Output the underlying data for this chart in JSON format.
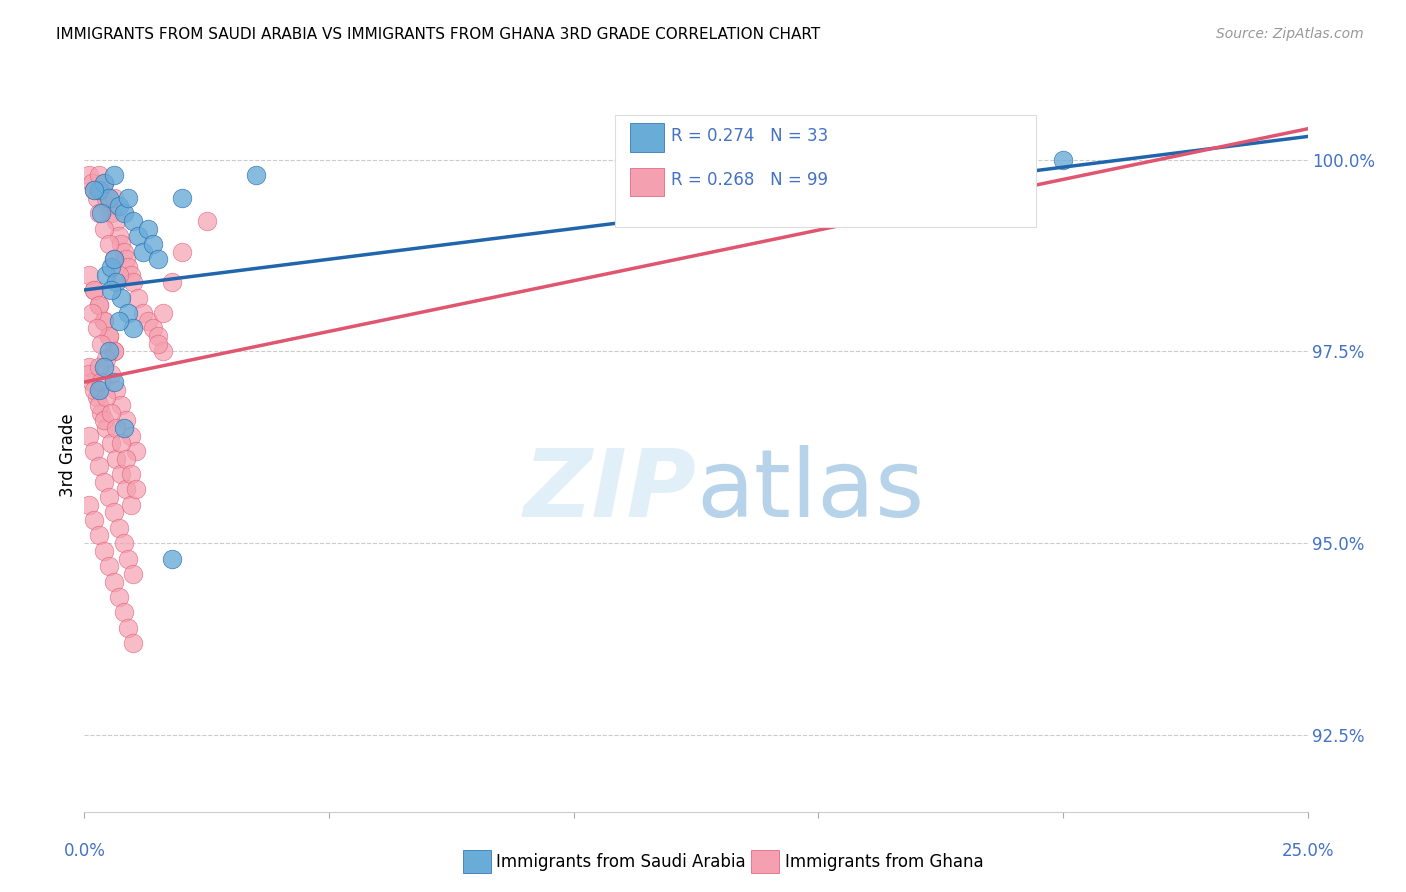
{
  "title": "IMMIGRANTS FROM SAUDI ARABIA VS IMMIGRANTS FROM GHANA 3RD GRADE CORRELATION CHART",
  "source": "Source: ZipAtlas.com",
  "ylabel": "3rd Grade",
  "ytick_labels": [
    "92.5%",
    "95.0%",
    "97.5%",
    "100.0%"
  ],
  "ytick_values": [
    92.5,
    95.0,
    97.5,
    100.0
  ],
  "xlim": [
    0.0,
    25.0
  ],
  "ylim": [
    91.5,
    100.8
  ],
  "legend_blue_label": "R = 0.274   N = 33",
  "legend_pink_label": "R = 0.268   N = 99",
  "legend_bottom_blue": "Immigrants from Saudi Arabia",
  "legend_bottom_pink": "Immigrants from Ghana",
  "blue_color": "#6aacd8",
  "pink_color": "#f4a0b0",
  "blue_line_color": "#2166ac",
  "pink_line_color": "#e05570",
  "background_color": "#ffffff",
  "blue_scatter_x": [
    0.3,
    0.4,
    0.5,
    0.6,
    0.7,
    0.8,
    0.9,
    1.0,
    1.1,
    1.2,
    1.3,
    1.4,
    1.5,
    0.2,
    0.35,
    0.45,
    0.55,
    0.65,
    0.75,
    0.9,
    1.0,
    0.5,
    0.4,
    0.3,
    2.0,
    0.6,
    0.55,
    0.7,
    3.5,
    1.8,
    0.8,
    0.6,
    20.0
  ],
  "blue_scatter_y": [
    99.6,
    99.7,
    99.5,
    99.8,
    99.4,
    99.3,
    99.5,
    99.2,
    99.0,
    98.8,
    99.1,
    98.9,
    98.7,
    99.6,
    99.3,
    98.5,
    98.6,
    98.4,
    98.2,
    98.0,
    97.8,
    97.5,
    97.3,
    97.0,
    99.5,
    98.7,
    98.3,
    97.9,
    99.8,
    94.8,
    96.5,
    97.1,
    100.0
  ],
  "pink_scatter_x": [
    0.1,
    0.15,
    0.2,
    0.25,
    0.3,
    0.35,
    0.4,
    0.45,
    0.5,
    0.55,
    0.6,
    0.65,
    0.7,
    0.75,
    0.8,
    0.85,
    0.9,
    0.95,
    1.0,
    1.1,
    1.2,
    1.3,
    1.4,
    1.5,
    1.6,
    0.2,
    0.3,
    0.4,
    0.5,
    0.6,
    0.1,
    0.15,
    0.25,
    0.35,
    0.45,
    0.55,
    0.65,
    0.75,
    0.85,
    0.95,
    0.1,
    0.2,
    0.3,
    0.4,
    0.5,
    0.6,
    0.1,
    0.2,
    0.3,
    0.4,
    0.1,
    0.2,
    0.3,
    0.4,
    0.5,
    0.6,
    0.7,
    0.8,
    0.9,
    1.0,
    0.15,
    0.25,
    0.35,
    0.45,
    0.55,
    0.65,
    0.75,
    0.85,
    0.95,
    1.05,
    0.1,
    0.2,
    0.3,
    0.4,
    0.5,
    0.6,
    0.7,
    0.8,
    0.9,
    1.0,
    0.3,
    0.4,
    0.5,
    0.6,
    0.7,
    0.3,
    0.35,
    0.45,
    0.55,
    0.65,
    0.75,
    0.85,
    0.95,
    1.05,
    1.5,
    1.6,
    1.8,
    2.0,
    2.5
  ],
  "pink_scatter_y": [
    99.8,
    99.7,
    99.6,
    99.5,
    99.8,
    99.6,
    99.7,
    99.5,
    99.4,
    99.3,
    99.5,
    99.2,
    99.0,
    98.9,
    98.8,
    98.7,
    98.6,
    98.5,
    98.4,
    98.2,
    98.0,
    97.9,
    97.8,
    97.7,
    97.5,
    98.3,
    98.1,
    97.9,
    97.7,
    97.5,
    97.3,
    97.1,
    96.9,
    96.7,
    96.5,
    96.3,
    96.1,
    95.9,
    95.7,
    95.5,
    98.5,
    98.3,
    98.1,
    97.9,
    97.7,
    97.5,
    97.2,
    97.0,
    96.8,
    96.6,
    96.4,
    96.2,
    96.0,
    95.8,
    95.6,
    95.4,
    95.2,
    95.0,
    94.8,
    94.6,
    98.0,
    97.8,
    97.6,
    97.4,
    97.2,
    97.0,
    96.8,
    96.6,
    96.4,
    96.2,
    95.5,
    95.3,
    95.1,
    94.9,
    94.7,
    94.5,
    94.3,
    94.1,
    93.9,
    93.7,
    99.3,
    99.1,
    98.9,
    98.7,
    98.5,
    97.3,
    97.1,
    96.9,
    96.7,
    96.5,
    96.3,
    96.1,
    95.9,
    95.7,
    97.6,
    98.0,
    98.4,
    98.8,
    99.2
  ],
  "blue_line_x": [
    0.0,
    25.0
  ],
  "blue_line_y": [
    98.3,
    100.3
  ],
  "pink_line_x": [
    0.0,
    25.0
  ],
  "pink_line_y": [
    97.1,
    100.4
  ]
}
